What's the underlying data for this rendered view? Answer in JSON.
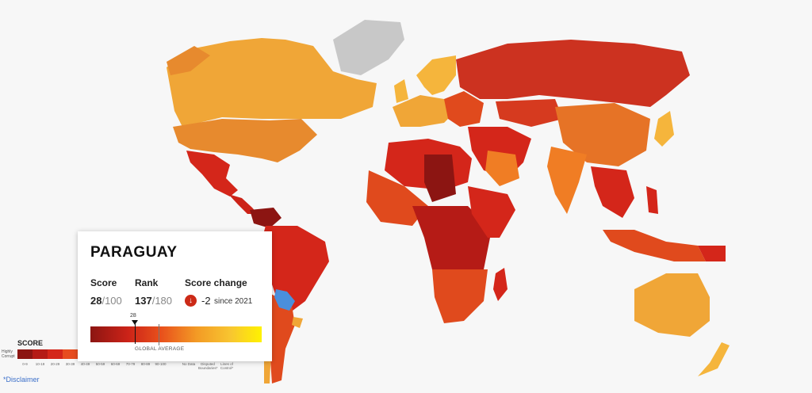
{
  "card": {
    "country": "PARAGUAY",
    "score_label": "Score",
    "score_value": "28",
    "score_max": "/100",
    "rank_label": "Rank",
    "rank_value": "137",
    "rank_max": "/180",
    "change_label": "Score change",
    "change_value": "-2",
    "change_since": "since 2021",
    "change_icon": "arrow-down-icon",
    "marker_value": "28",
    "global_average_label": "GLOBAL AVERAGE"
  },
  "legend": {
    "title": "SCORE",
    "sub_label": "Highly Corrupt",
    "ranges": [
      "0-9",
      "10-19",
      "20-29",
      "30-39",
      "40-49",
      "50-59",
      "60-69",
      "70-79",
      "80-89",
      "90-100"
    ],
    "colors": [
      "#8c1512",
      "#b51b16",
      "#d4261a",
      "#e74c1f",
      "#f07d24",
      "#f5a22b",
      "#f8c232",
      "#fbd940",
      "#fde95a",
      "#fff200"
    ],
    "no_data": "No Data",
    "disputed": "Disputed Boundaries*",
    "lines_of_control": "Lines of Control*"
  },
  "disclaimer": "*Disclaimer",
  "colors": {
    "no_data": "#c8c8c8",
    "selected": "#4a8fdc",
    "ocean": "#f7f7f7"
  }
}
